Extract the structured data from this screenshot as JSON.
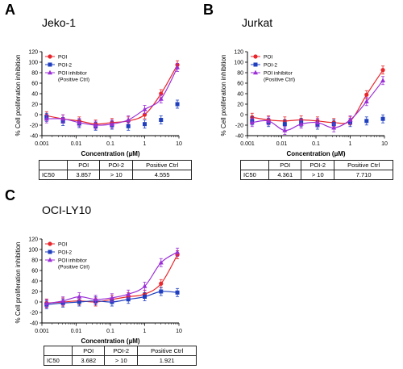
{
  "panels": [
    {
      "letter": "A",
      "title": "Jeko-1",
      "table": {
        "row_label": "IC50",
        "headers": [
          "POI",
          "POI-2",
          "Positive Ctrl"
        ],
        "values": [
          "3.857",
          "> 10",
          "4.555"
        ]
      }
    },
    {
      "letter": "B",
      "title": "Jurkat",
      "table": {
        "row_label": "IC50",
        "headers": [
          "POI",
          "POI-2",
          "Positive Ctrl"
        ],
        "values": [
          "4.361",
          "> 10",
          "7.710"
        ]
      }
    },
    {
      "letter": "C",
      "title": "OCI-LY10",
      "table": {
        "row_label": "IC50",
        "headers": [
          "POI",
          "POI-2",
          "Positive Ctrl"
        ],
        "values": [
          "3.682",
          "> 10",
          "1.921"
        ]
      }
    }
  ],
  "colors": {
    "POI": "#e8262b",
    "POI-2": "#1f3fbf",
    "Positive Ctrl": "#9b2fd6"
  },
  "chart_data": [
    {
      "type": "scatter",
      "xscale": "log",
      "xlim": [
        0.001,
        10
      ],
      "ylim": [
        -40,
        120
      ],
      "xticks": [
        "0.001",
        "0.01",
        "0.1",
        "1",
        "10"
      ],
      "yticks": [
        "-40",
        "-20",
        "0",
        "20",
        "40",
        "60",
        "80",
        "100",
        "120"
      ],
      "xlabel": "Concentration (µM)",
      "ylabel": "% Cell proliferation inhibition",
      "legend": [
        "POI",
        "POI-2",
        "POI inhibitor",
        "(Positive Ctrl)"
      ],
      "legend_position": "top-left",
      "x": [
        0.00137,
        0.00412,
        0.0123,
        0.037,
        0.111,
        0.333,
        1,
        3,
        9
      ],
      "series": [
        {
          "name": "POI",
          "marker": "circle",
          "y": [
            -2,
            -8,
            -12,
            -18,
            -15,
            -12,
            0,
            40,
            95
          ]
        },
        {
          "name": "POI-2",
          "marker": "square",
          "y": [
            -5,
            -13,
            -17,
            -22,
            -20,
            -22,
            -18,
            -10,
            20
          ]
        },
        {
          "name": "POI inhibitor (Positive Ctrl)",
          "marker": "triangle",
          "y": [
            -8,
            -8,
            -15,
            -20,
            -18,
            -10,
            10,
            30,
            90
          ]
        }
      ]
    },
    {
      "type": "scatter",
      "xscale": "log",
      "xlim": [
        0.001,
        10
      ],
      "ylim": [
        -40,
        120
      ],
      "xticks": [
        "0.001",
        "0.01",
        "0.1",
        "1",
        "10"
      ],
      "yticks": [
        "-40",
        "-20",
        "0",
        "20",
        "40",
        "60",
        "80",
        "100",
        "120"
      ],
      "xlabel": "Concentration (µM)",
      "ylabel": "% Cell proliferation inhibition",
      "legend": [
        "POI",
        "POI-2",
        "POI inhibitor",
        "(Positive Ctrl)"
      ],
      "legend_position": "top-left",
      "x": [
        0.00137,
        0.00412,
        0.0123,
        0.037,
        0.111,
        0.333,
        1,
        3,
        9
      ],
      "series": [
        {
          "name": "POI",
          "marker": "circle",
          "y": [
            -5,
            -10,
            -12,
            -10,
            -12,
            -15,
            -12,
            38,
            85
          ]
        },
        {
          "name": "POI-2",
          "marker": "square",
          "y": [
            -12,
            -15,
            -18,
            -15,
            -20,
            -18,
            -15,
            -12,
            -8
          ]
        },
        {
          "name": "POI inhibitor (Positive Ctrl)",
          "marker": "triangle",
          "y": [
            -15,
            -12,
            -30,
            -18,
            -15,
            -25,
            -10,
            25,
            65
          ]
        }
      ]
    },
    {
      "type": "scatter",
      "xscale": "log",
      "xlim": [
        0.001,
        10
      ],
      "ylim": [
        -40,
        120
      ],
      "xticks": [
        "0.001",
        "0.01",
        "0.1",
        "1",
        "10"
      ],
      "yticks": [
        "-40",
        "-20",
        "0",
        "20",
        "40",
        "60",
        "80",
        "100",
        "120"
      ],
      "xlabel": "Concentration (µM)",
      "ylabel": "% Cell proliferation inhibition",
      "legend": [
        "POI",
        "POI-2",
        "POI inhibitor",
        "(Positive Ctrl)"
      ],
      "legend_position": "top-left",
      "x": [
        0.00137,
        0.00412,
        0.0123,
        0.037,
        0.111,
        0.333,
        1,
        3,
        9
      ],
      "series": [
        {
          "name": "POI",
          "marker": "circle",
          "y": [
            -2,
            0,
            2,
            0,
            5,
            10,
            15,
            35,
            90
          ]
        },
        {
          "name": "POI-2",
          "marker": "square",
          "y": [
            -5,
            -2,
            0,
            2,
            0,
            5,
            10,
            20,
            18
          ]
        },
        {
          "name": "POI inhibitor (Positive Ctrl)",
          "marker": "triangle",
          "y": [
            -3,
            2,
            10,
            5,
            8,
            15,
            30,
            75,
            95
          ]
        }
      ]
    }
  ]
}
